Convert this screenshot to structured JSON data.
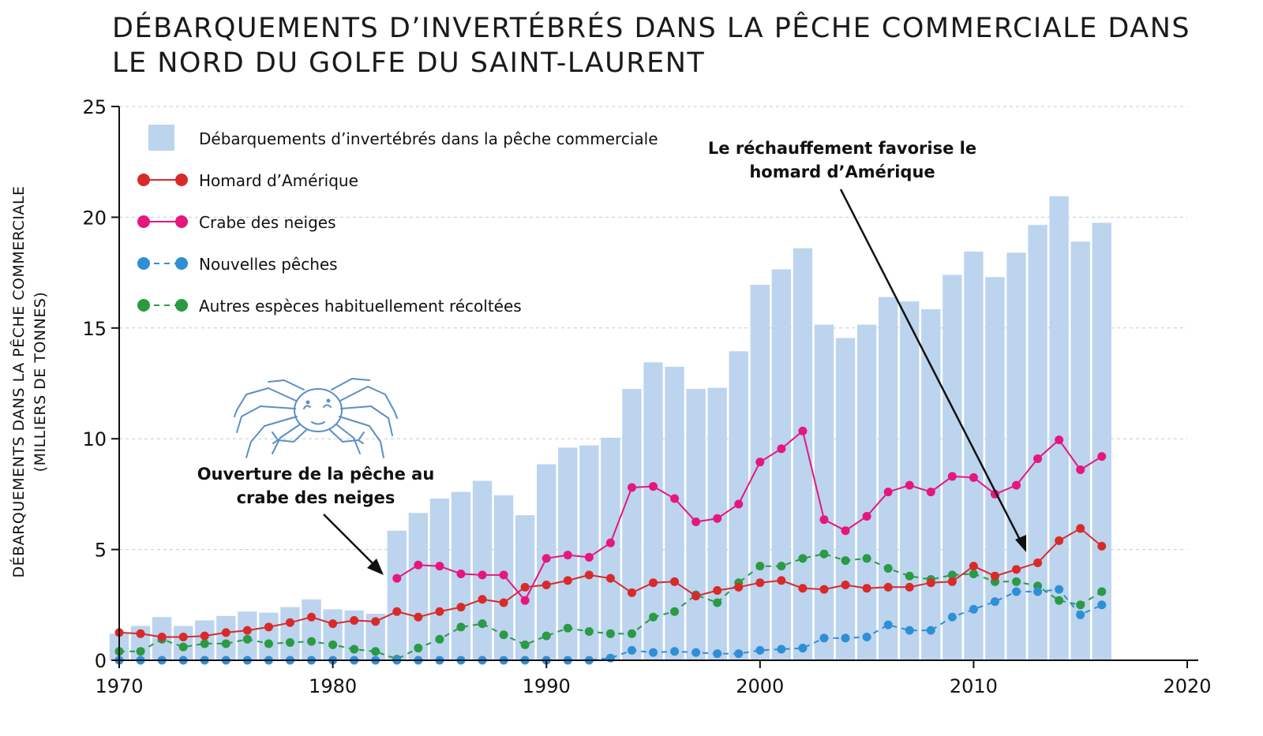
{
  "title": {
    "line1": "DÉBARQUEMENTS D’INVERTÉBRÉS DANS LA PÊCHE COMMERCIALE DANS",
    "line2": "LE NORD DU GOLFE DU SAINT-LAURENT"
  },
  "colors": {
    "bars": "#bcd4ee",
    "homard": "#d92a2a",
    "crabe": "#e5177d",
    "nouvelles": "#2f8fd6",
    "autres": "#2a9a44"
  },
  "chart_data": {
    "type": "bar+line",
    "ylabel_line1": "DÉBARQUEMENTS DANS LA PÊCHE COMMERCIALE",
    "ylabel_line2": "(MILLIERS DE TONNES)",
    "xlim": [
      1970,
      2020
    ],
    "ylim": [
      0,
      25
    ],
    "xticks": [
      "1970",
      "1980",
      "1990",
      "2000",
      "2010",
      "2020"
    ],
    "yticks": [
      "0",
      "5",
      "10",
      "15",
      "20",
      "25"
    ],
    "years": [
      1970,
      1971,
      1972,
      1973,
      1974,
      1975,
      1976,
      1977,
      1978,
      1979,
      1980,
      1981,
      1982,
      1983,
      1984,
      1985,
      1986,
      1987,
      1988,
      1989,
      1990,
      1991,
      1992,
      1993,
      1994,
      1995,
      1996,
      1997,
      1998,
      1999,
      2000,
      2001,
      2002,
      2003,
      2004,
      2005,
      2006,
      2007,
      2008,
      2009,
      2010,
      2011,
      2012,
      2013,
      2014,
      2015,
      2016
    ],
    "bars": {
      "name": "Débarquements d’invertébrés dans la pêche commerciale",
      "values": [
        1.2,
        1.55,
        1.95,
        1.55,
        1.8,
        2.0,
        2.2,
        2.15,
        2.4,
        2.75,
        2.3,
        2.25,
        2.1,
        5.85,
        6.65,
        7.3,
        7.6,
        8.1,
        7.45,
        6.55,
        8.85,
        9.6,
        9.7,
        10.05,
        12.25,
        13.45,
        13.25,
        12.25,
        12.3,
        13.95,
        16.95,
        17.65,
        18.6,
        15.15,
        14.55,
        15.15,
        16.4,
        16.2,
        15.85,
        17.4,
        18.45,
        17.3,
        18.4,
        19.65,
        20.95,
        18.9,
        19.75
      ]
    },
    "series": [
      {
        "name": "Homard d’Amérique",
        "style": "solid",
        "start": 1970,
        "values": [
          1.25,
          1.2,
          1.05,
          1.05,
          1.1,
          1.25,
          1.35,
          1.5,
          1.7,
          1.95,
          1.65,
          1.8,
          1.75,
          2.2,
          1.95,
          2.2,
          2.4,
          2.75,
          2.6,
          3.3,
          3.4,
          3.6,
          3.85,
          3.7,
          3.05,
          3.5,
          3.55,
          2.9,
          3.15,
          3.3,
          3.5,
          3.6,
          3.25,
          3.2,
          3.4,
          3.25,
          3.3,
          3.3,
          3.5,
          3.55,
          4.25,
          3.8,
          4.1,
          4.4,
          5.4,
          5.95,
          5.15
        ]
      },
      {
        "name": "Crabe des neiges",
        "style": "solid",
        "start": 1983,
        "values": [
          3.7,
          4.3,
          4.25,
          3.9,
          3.85,
          3.85,
          2.7,
          4.6,
          4.75,
          4.65,
          5.3,
          7.8,
          7.85,
          7.3,
          6.25,
          6.4,
          7.05,
          8.95,
          9.55,
          10.35,
          6.35,
          5.85,
          6.5,
          7.6,
          7.9,
          7.6,
          8.3,
          8.25,
          7.5,
          7.9,
          9.1,
          9.95,
          8.6,
          9.2
        ]
      },
      {
        "name": "Nouvelles pêches",
        "style": "dashed",
        "start": 1970,
        "values": [
          0,
          0,
          0,
          0,
          0,
          0,
          0,
          0,
          0,
          0,
          0,
          0,
          0,
          0,
          0,
          0,
          0,
          0,
          0,
          0,
          0,
          0,
          0,
          0.1,
          0.45,
          0.35,
          0.4,
          0.35,
          0.3,
          0.3,
          0.45,
          0.5,
          0.55,
          1.0,
          1.0,
          1.05,
          1.6,
          1.35,
          1.35,
          1.95,
          2.3,
          2.65,
          3.1,
          3.1,
          3.2,
          2.05,
          2.5
        ]
      },
      {
        "name": "Autres espèces habituellement récoltées",
        "style": "dashed",
        "start": 1970,
        "values": [
          0.4,
          0.4,
          0.95,
          0.6,
          0.75,
          0.75,
          0.95,
          0.75,
          0.8,
          0.85,
          0.7,
          0.5,
          0.4,
          0.05,
          0.55,
          0.95,
          1.5,
          1.65,
          1.15,
          0.7,
          1.1,
          1.45,
          1.3,
          1.2,
          1.2,
          1.95,
          2.2,
          2.95,
          2.6,
          3.5,
          4.25,
          4.25,
          4.6,
          4.8,
          4.5,
          4.6,
          4.15,
          3.8,
          3.65,
          3.85,
          3.9,
          3.55,
          3.55,
          3.35,
          2.7,
          2.5,
          3.1
        ]
      }
    ],
    "annotations": {
      "crab_line1": "Ouverture de la pêche au",
      "crab_line2": "crabe des neiges",
      "lobster_line1": "Le réchauffement favorise le",
      "lobster_line2": "homard d’Amérique"
    }
  }
}
